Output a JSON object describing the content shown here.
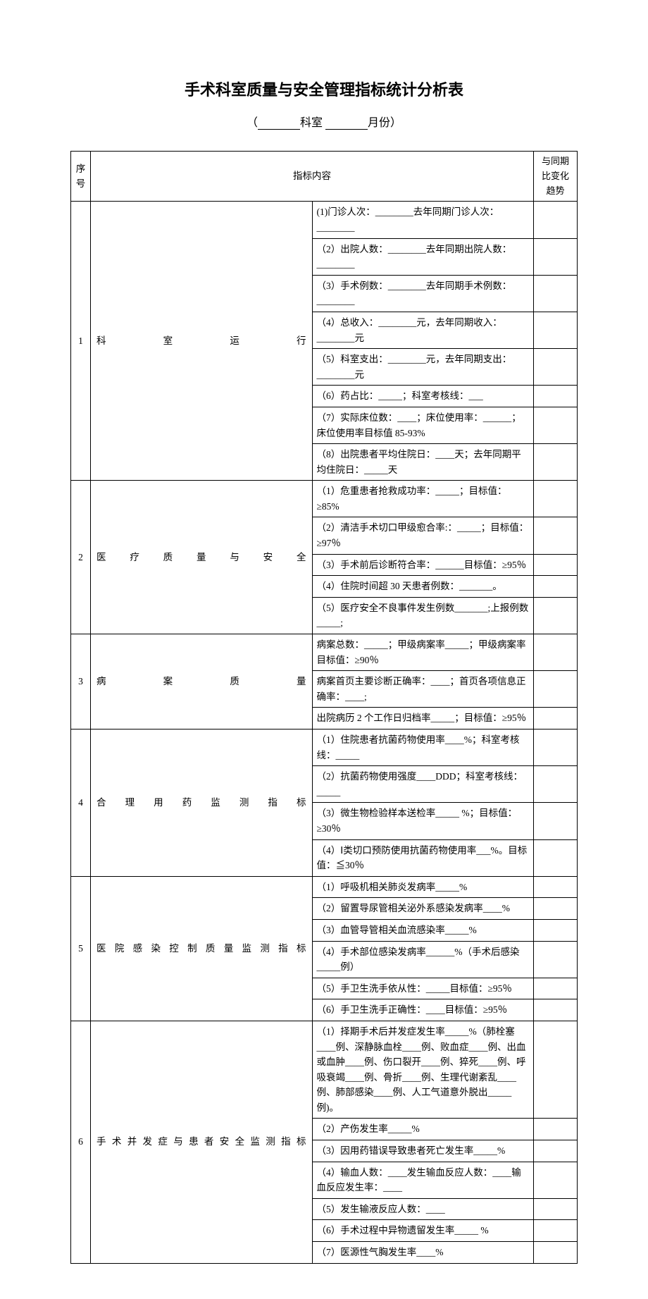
{
  "title": "手术科室质量与安全管理指标统计分析表",
  "subtitle_prefix": "（",
  "subtitle_dept": "科室",
  "subtitle_month": "月份）",
  "header": {
    "num": "序号",
    "content": "指标内容",
    "trend": "与同期比变化趋势"
  },
  "sections": [
    {
      "num": "1",
      "category": "科室运行",
      "rows": [
        "(1)门诊人次：________去年同期门诊人次：________",
        "（2）出院人数：________去年同期出院人数：________",
        "（3）手术例数：________去年同期手术例数：________",
        "（4）总收入：________元，去年同期收入：________元",
        "（5）科室支出：________元，去年同期支出：________元",
        "（6）药占比：_____；科室考核线：___",
        "（7）实际床位数：____；床位使用率：______；床位使用率目标值 85-93%",
        "（8）出院患者平均住院日：____天；去年同期平均住院日：_____天"
      ]
    },
    {
      "num": "2",
      "category": "医疗质量与安全",
      "rows": [
        "（1）危重患者抢救成功率：_____；目标值：≥85%",
        "（2）清洁手术切口甲级愈合率:：_____；目标值：≥97％",
        "（3）手术前后诊断符合率：______目标值：≥95％",
        "（4）住院时间超 30 天患者例数：_______。",
        "（5）医疗安全不良事件发生例数_______;上报例数_____;"
      ]
    },
    {
      "num": "3",
      "category": "病案质量",
      "rows": [
        "病案总数：_____；甲级病案率_____；甲级病案率目标值：≥90％",
        "病案首页主要诊断正确率：____；首页各项信息正确率：____;",
        "出院病历 2 个工作日归档率_____；目标值：≥95％"
      ]
    },
    {
      "num": "4",
      "category": "合理用药监测指标",
      "rows": [
        "（1）住院患者抗菌药物使用率____%；科室考核线：_____",
        "（2）抗菌药物使用强度____DDD；科室考核线：_____",
        "（3）微生物检验样本送检率_____ %；目标值：≥30％",
        "（4）Ⅰ类切口预防使用抗菌药物使用率___%。目标值：≦30％"
      ]
    },
    {
      "num": "5",
      "category": "医院感染控制质量监测指标",
      "rows": [
        "（1）呼吸机相关肺炎发病率_____%",
        "（2）留置导尿管相关泌外系感染发病率____%",
        "（3）血管导管相关血流感染率_____%",
        "（4）手术部位感染发病率______%（手术后感染_____例）",
        "（5）手卫生洗手依从性：_____目标值：≥95％",
        "（6）手卫生洗手正确性：____目标值：≥95％"
      ]
    },
    {
      "num": "6",
      "category": "手术并发症与患者安全监测指标",
      "rows": [
        "（1）择期手术后并发症发生率_____%（肺栓塞____例、深静脉血栓____例、败血症____例、出血或血肿____例、伤口裂开____例、猝死____例、呼吸衰竭____例、骨折____例、生理代谢紊乱____例、肺部感染____例、人工气道意外脱出_____例)。",
        "（2）产伤发生率_____%",
        "（3）因用药错误导致患者死亡发生率_____%",
        "（4）输血人数：____发生输血反应人数：____输血反应发生率：____",
        "（5）发生输液反应人数：____",
        "（6）手术过程中异物遗留发生率_____ %",
        "（7）医源性气胸发生率____%"
      ]
    }
  ]
}
